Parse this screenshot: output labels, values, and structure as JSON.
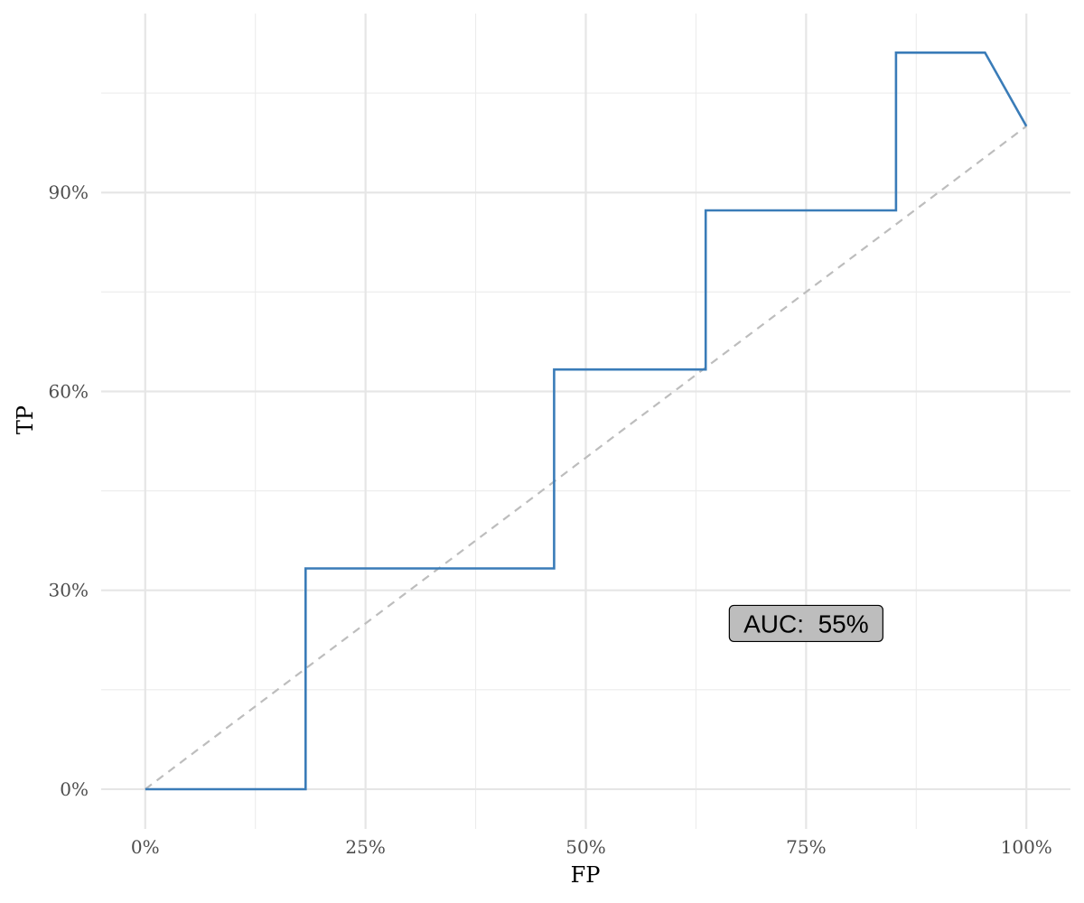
{
  "chart_data": {
    "type": "line",
    "xlabel": "FP",
    "ylabel": "TP",
    "x_ticks": [
      "0%",
      "25%",
      "50%",
      "75%",
      "100%"
    ],
    "y_ticks": [
      "0%",
      "30%",
      "60%",
      "90%"
    ],
    "x_tick_values": [
      0,
      25,
      50,
      75,
      100
    ],
    "y_tick_values": [
      0,
      30,
      60,
      90
    ],
    "xlim": [
      -5,
      105
    ],
    "ylim": [
      -6,
      117
    ],
    "grid": true,
    "series": [
      {
        "color": "#3a7cb8",
        "x": [
          0,
          18.2,
          18.2,
          46.4,
          46.4,
          63.6,
          63.6,
          85.2,
          85.2,
          95.3,
          100
        ],
        "y": [
          0,
          0,
          33.3,
          33.3,
          63.3,
          63.3,
          87.3,
          87.3,
          111.1,
          111.1,
          100
        ]
      }
    ],
    "reference_line": {
      "style": "dashed",
      "color": "#bdbdbd",
      "x": [
        0,
        100
      ],
      "y": [
        0,
        100
      ]
    },
    "annotations": [
      {
        "text": "AUC:  55%",
        "x": 75,
        "y": 25,
        "fill": "#bdbdbd"
      }
    ]
  }
}
